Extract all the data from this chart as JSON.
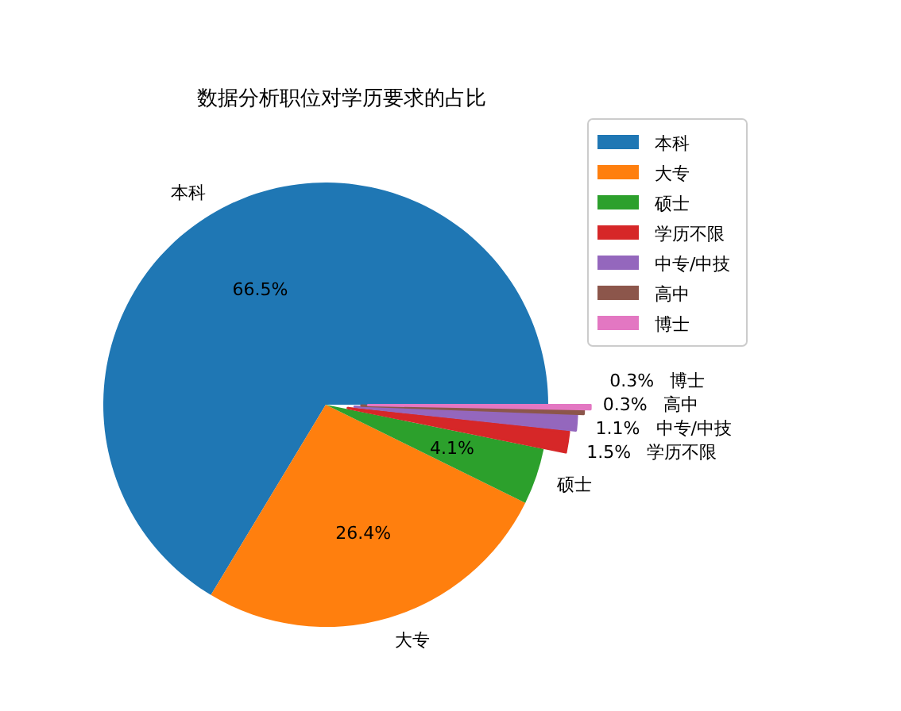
{
  "chart_data": {
    "type": "pie",
    "title": "数据分析职位对学历要求的占比",
    "categories": [
      "本科",
      "大专",
      "硕士",
      "学历不限",
      "中专/中技",
      "高中",
      "博士"
    ],
    "values": [
      66.5,
      26.4,
      4.1,
      1.5,
      1.1,
      0.3,
      0.3
    ],
    "colors": [
      "#1f77b4",
      "#ff7f0e",
      "#2ca02c",
      "#d62728",
      "#9467bd",
      "#8c564b",
      "#e377c2"
    ],
    "value_labels": [
      "66.5%",
      "26.4%",
      "4.1%",
      "1.5%",
      "1.1%",
      "0.3%",
      "0.3%"
    ],
    "legend": "top right"
  }
}
